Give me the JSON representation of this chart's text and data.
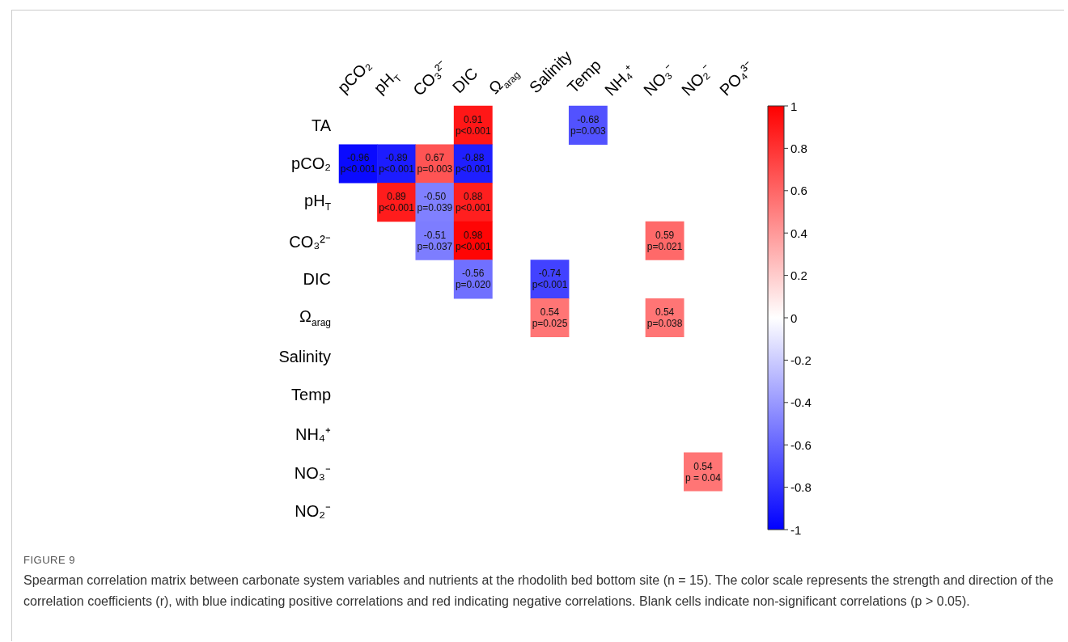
{
  "chart_data": {
    "type": "heatmap",
    "categories": [
      "pCO₂",
      "pH$_{T}$",
      "CO₃²⁻",
      "DIC",
      "Ω$_{arag}$",
      "Salinity",
      "Temp",
      "NH₄⁺",
      "NO₃⁻",
      "NO₂⁻",
      "PO₄³⁻"
    ],
    "y_categories": [
      "TA",
      "pCO₂",
      "pH$_{T}$",
      "CO₃²⁻",
      "DIC",
      "Ω$_{arag}$",
      "Salinity",
      "Temp",
      "NH₄⁺",
      "NO₃⁻",
      "NO₂⁻"
    ],
    "cells": [
      [
        null,
        null,
        null,
        0.91,
        null,
        null,
        -0.68,
        null,
        null,
        null,
        null
      ],
      [
        -0.96,
        -0.89,
        0.67,
        -0.88,
        null,
        null,
        null,
        null,
        null,
        null,
        null
      ],
      [
        null,
        0.89,
        -0.5,
        0.88,
        null,
        null,
        null,
        null,
        null,
        null,
        null
      ],
      [
        null,
        null,
        -0.51,
        0.98,
        null,
        null,
        null,
        null,
        0.59,
        null,
        null
      ],
      [
        null,
        null,
        null,
        -0.56,
        null,
        -0.74,
        null,
        null,
        null,
        null,
        null
      ],
      [
        null,
        null,
        null,
        null,
        null,
        0.54,
        null,
        null,
        0.54,
        null,
        null
      ],
      [
        null,
        null,
        null,
        null,
        null,
        null,
        null,
        null,
        null,
        null,
        null
      ],
      [
        null,
        null,
        null,
        null,
        null,
        null,
        null,
        null,
        null,
        null,
        null
      ],
      [
        null,
        null,
        null,
        null,
        null,
        null,
        null,
        null,
        null,
        null,
        null
      ],
      [
        null,
        null,
        null,
        null,
        null,
        null,
        null,
        null,
        null,
        0.54,
        null
      ],
      [
        null,
        null,
        null,
        null,
        null,
        null,
        null,
        null,
        null,
        null,
        null
      ]
    ],
    "cell_labels": [
      [
        null,
        null,
        null,
        "0.91\np<0.001",
        null,
        null,
        "-0.68\np=0.003",
        null,
        null,
        null,
        null
      ],
      [
        "-0.96\np<0.001",
        "-0.89\np<0.001",
        "0.67\np=0.003",
        "-0.88\np<0.001",
        null,
        null,
        null,
        null,
        null,
        null,
        null
      ],
      [
        null,
        "0.89\np<0.001",
        "-0.50\np=0.039",
        "0.88\np<0.001",
        null,
        null,
        null,
        null,
        null,
        null,
        null
      ],
      [
        null,
        null,
        "-0.51\np=0.037",
        "0.98\np<0.001",
        null,
        null,
        null,
        null,
        "0.59\np=0.021",
        null,
        null
      ],
      [
        null,
        null,
        null,
        "-0.56\np=0.020",
        null,
        "-0.74\np<0.001",
        null,
        null,
        null,
        null,
        null
      ],
      [
        null,
        null,
        null,
        null,
        null,
        "0.54\np=0.025",
        null,
        null,
        "0.54\np=0.038",
        null,
        null
      ],
      [
        null,
        null,
        null,
        null,
        null,
        null,
        null,
        null,
        null,
        null,
        null
      ],
      [
        null,
        null,
        null,
        null,
        null,
        null,
        null,
        null,
        null,
        null,
        null
      ],
      [
        null,
        null,
        null,
        null,
        null,
        null,
        null,
        null,
        null,
        null,
        null
      ],
      [
        null,
        null,
        null,
        null,
        null,
        null,
        null,
        null,
        null,
        "0.54\np = 0.04",
        null
      ],
      [
        null,
        null,
        null,
        null,
        null,
        null,
        null,
        null,
        null,
        null,
        null
      ]
    ],
    "clim": [
      -1,
      1
    ],
    "cticks": [
      -1,
      -0.8,
      -0.6,
      -0.4,
      -0.2,
      0,
      0.2,
      0.4,
      0.6,
      0.8,
      1
    ],
    "annotations": [
      "FIGURE 9",
      "Spearman correlation matrix between carbonate system variables and nutrients at the rhodolith bed bottom site (n = 15). The color scale represents the strength and direction of the correlation coefficients (r), with blue indicating positive correlations and red indicating negative correlations. Blank cells indicate non-significant correlations (p > 0.05)."
    ]
  }
}
